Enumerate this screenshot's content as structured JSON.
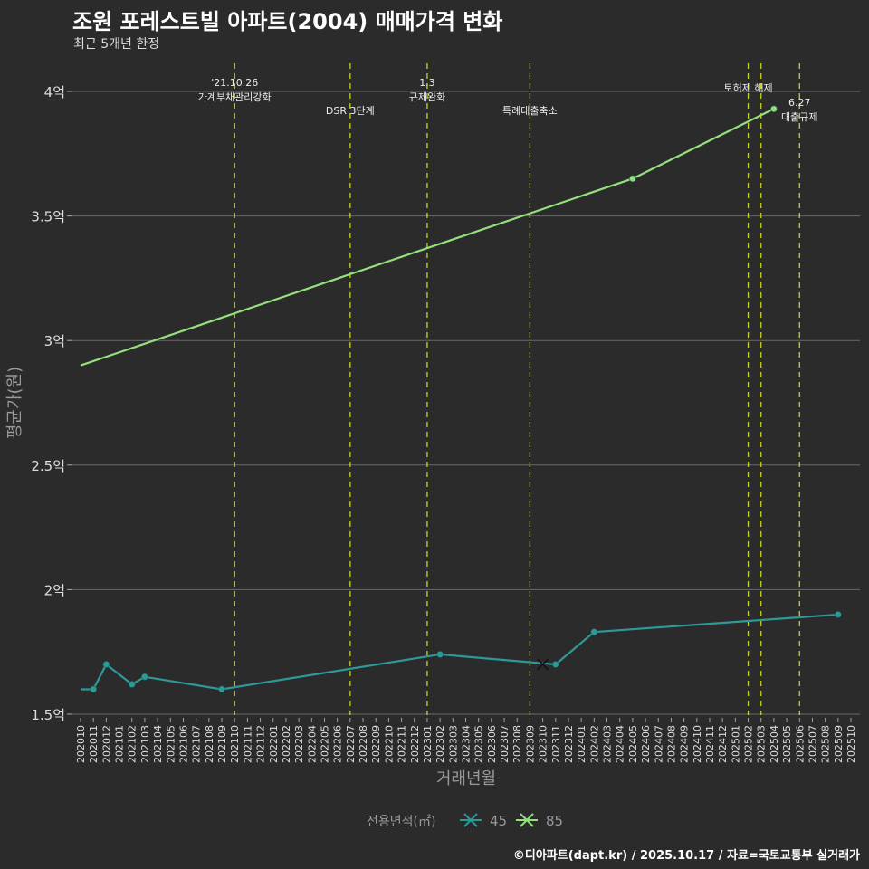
{
  "chart_data": {
    "type": "line",
    "title": "조원 포레스트빌 아파트(2004) 매매가격 변화",
    "subtitle": "최근 5개년 한정",
    "xlabel": "거래년월",
    "ylabel": "평균가(원)",
    "ylim": [
      1.5,
      4.0
    ],
    "y_ticks": [
      {
        "v": 1.5,
        "label": "1.5억"
      },
      {
        "v": 2,
        "label": "2억"
      },
      {
        "v": 2.5,
        "label": "2.5억"
      },
      {
        "v": 3,
        "label": "3억"
      },
      {
        "v": 3.5,
        "label": "3.5억"
      },
      {
        "v": 4,
        "label": "4억"
      }
    ],
    "x_labels": [
      "202010",
      "202011",
      "202012",
      "202101",
      "202102",
      "202103",
      "202104",
      "202105",
      "202106",
      "202107",
      "202108",
      "202109",
      "202110",
      "202111",
      "202112",
      "202201",
      "202202",
      "202203",
      "202204",
      "202205",
      "202206",
      "202207",
      "202208",
      "202209",
      "202210",
      "202211",
      "202212",
      "202301",
      "202302",
      "202303",
      "202304",
      "202305",
      "202306",
      "202307",
      "202308",
      "202309",
      "202310",
      "202311",
      "202312",
      "202401",
      "202402",
      "202403",
      "202404",
      "202405",
      "202406",
      "202407",
      "202408",
      "202409",
      "202410",
      "202411",
      "202412",
      "202501",
      "202502",
      "202503",
      "202504",
      "202505",
      "202506",
      "202507",
      "202508",
      "202509",
      "202510"
    ],
    "legend": {
      "title": "전용면적(㎡)",
      "position": "bottom"
    },
    "series": [
      {
        "name": "45",
        "color": "#2e9a98",
        "points": [
          [
            "202010",
            1.6,
            false
          ],
          [
            "202011",
            1.6,
            true
          ],
          [
            "202012",
            1.7,
            true
          ],
          [
            "202102",
            1.62,
            true
          ],
          [
            "202103",
            1.65,
            true
          ],
          [
            "202109",
            1.6,
            true
          ],
          [
            "202302",
            1.74,
            true
          ],
          [
            "202311",
            1.7,
            true
          ],
          [
            "202402",
            1.83,
            true
          ],
          [
            "202509",
            1.9,
            true
          ]
        ],
        "cross": [
          "202310",
          1.7
        ]
      },
      {
        "name": "85",
        "color": "#93e07c",
        "points": [
          [
            "202010",
            2.9,
            false
          ],
          [
            "202405",
            3.65,
            true
          ],
          [
            "202504",
            3.93,
            true
          ]
        ]
      }
    ],
    "events": [
      {
        "month": "202110",
        "lines": [
          "'21.10.26",
          "가계부채관리강화"
        ],
        "row": 0
      },
      {
        "month": "202207",
        "lines": [
          "DSR 3단계"
        ],
        "row": 1
      },
      {
        "month": "202301",
        "lines": [
          "1.3",
          "규제완화"
        ],
        "row": 0
      },
      {
        "month": "202309",
        "lines": [
          "특례대출축소"
        ],
        "row": 1
      },
      {
        "month": "202502",
        "lines": [
          "토허제 해제"
        ],
        "row": -1
      },
      {
        "month": "202503",
        "lines": [],
        "row": -1
      },
      {
        "month": "202506",
        "lines": [
          "6.27",
          "대출규제"
        ],
        "row": 2
      }
    ],
    "event_color": "#c8d21e"
  },
  "caption": "©디아파트(dapt.kr) / 2025.10.17 / 자료=국토교통부 실거래가"
}
